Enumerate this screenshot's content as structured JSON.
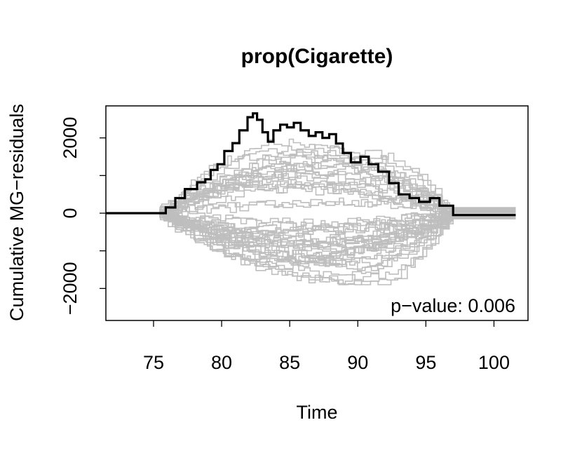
{
  "chart_data": {
    "type": "line",
    "title": "prop(Cigarette)",
    "xlabel": "Time",
    "ylabel": "Cumulative MG−residuals",
    "xlim": [
      71.5,
      102.5
    ],
    "ylim": [
      -2850,
      2850
    ],
    "x_ticks": [
      75,
      80,
      85,
      90,
      95,
      100
    ],
    "x_tick_labels": [
      "75",
      "80",
      "85",
      "90",
      "95",
      "100"
    ],
    "y_ticks": [
      -2000,
      -1000,
      0,
      1000,
      2000
    ],
    "y_tick_labels": [
      "−2000",
      "",
      "0",
      "",
      "2000"
    ],
    "annotation": "p−value: 0.006",
    "grid": false,
    "simulated_paths": {
      "count": 50,
      "color": "#bebebe",
      "x_start": 75.2,
      "x_end": 101.6,
      "tail_start": 97,
      "approx_range": [
        -1900,
        2300
      ]
    },
    "series": [
      {
        "color": "#000000",
        "step": true,
        "x": [
          71.5,
          75.2,
          75.9,
          76.6,
          77.3,
          78.2,
          78.8,
          79.2,
          79.7,
          80.2,
          80.8,
          81.3,
          81.9,
          82.3,
          82.6,
          83.0,
          83.4,
          83.8,
          84.3,
          84.8,
          85.3,
          85.8,
          86.4,
          86.9,
          87.4,
          87.9,
          88.4,
          88.9,
          89.5,
          90.2,
          90.8,
          91.5,
          92.3,
          93.0,
          93.8,
          94.5,
          95.3,
          96.0,
          97.0,
          101.6
        ],
        "y": [
          0,
          0,
          150,
          400,
          640,
          820,
          900,
          1150,
          1300,
          1650,
          1860,
          2200,
          2550,
          2650,
          2480,
          2150,
          1900,
          2200,
          2350,
          2280,
          2400,
          2200,
          2050,
          2150,
          2000,
          2100,
          1850,
          1600,
          1350,
          1500,
          1300,
          1100,
          800,
          500,
          400,
          300,
          400,
          200,
          -50,
          -50
        ]
      }
    ]
  }
}
